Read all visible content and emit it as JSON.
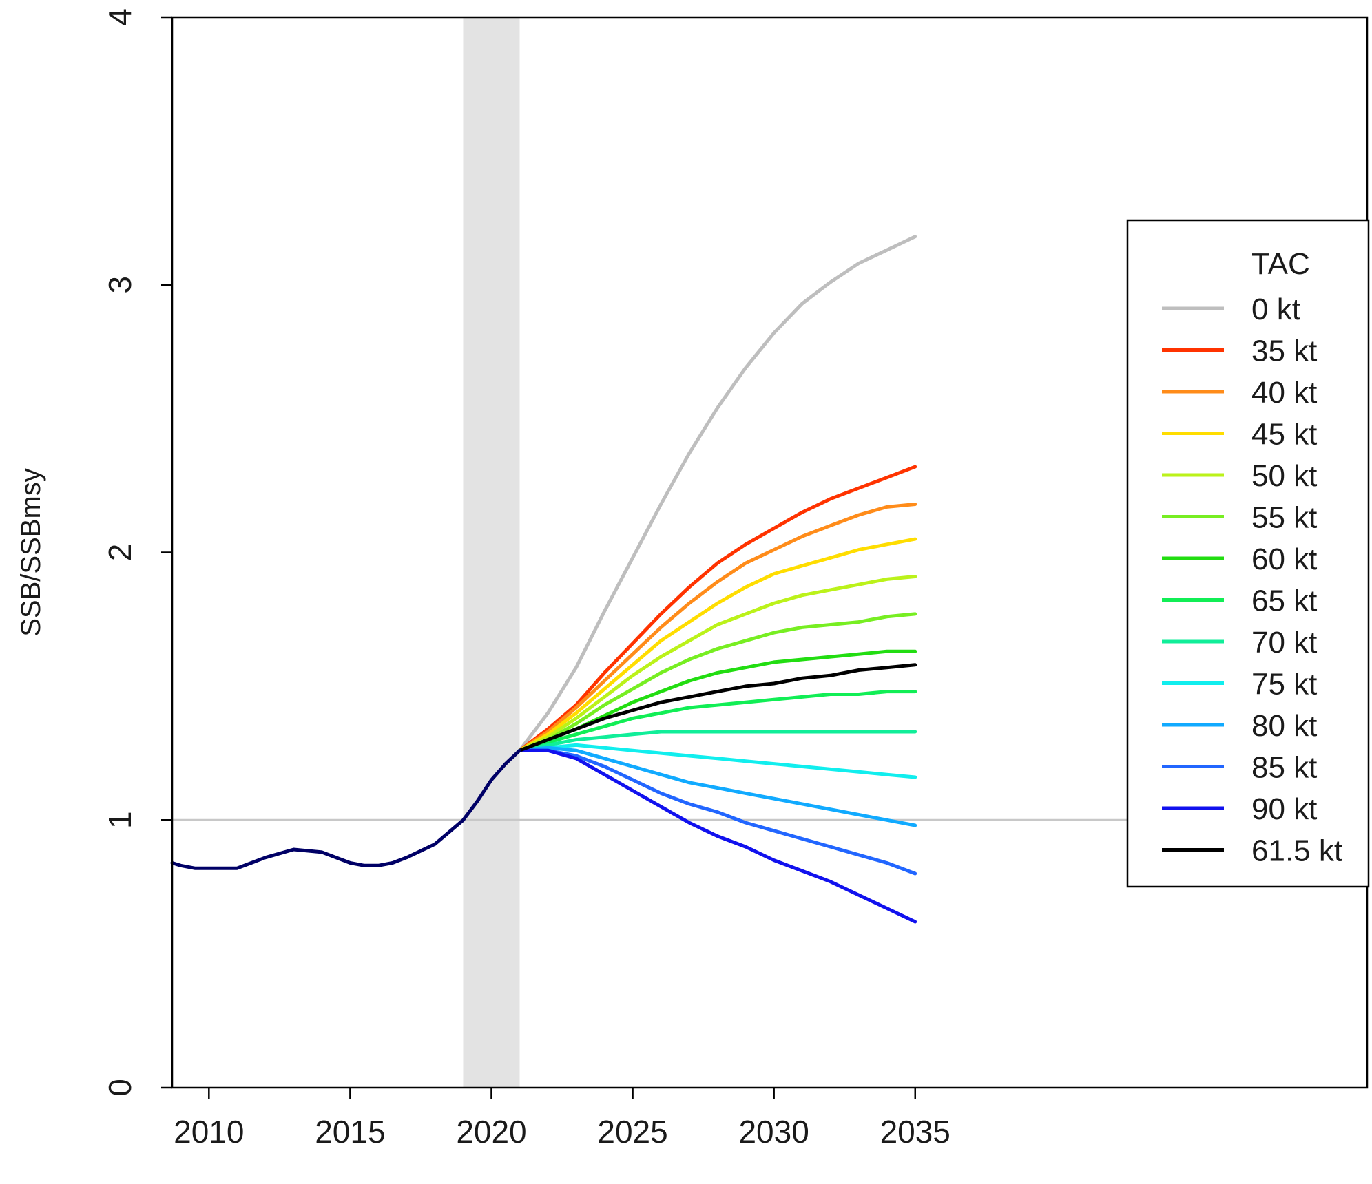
{
  "chart_data": {
    "type": "line",
    "title": "",
    "xlabel": "",
    "ylabel": "SSB/SSBmsy",
    "xlim": [
      2008.7,
      2051
    ],
    "ylim": [
      0,
      4
    ],
    "x_ticks": [
      "2010",
      "2015",
      "2020",
      "2025",
      "2030",
      "2035"
    ],
    "y_ticks": [
      "0",
      "1",
      "2",
      "3",
      "4"
    ],
    "grid": false,
    "shaded_region": {
      "x": [
        2019,
        2021
      ],
      "color": "#e3e3e3"
    },
    "reference_line": {
      "y": 1,
      "color": "#c8c8c8"
    },
    "historical": {
      "x": [
        2008.7,
        2009,
        2009.5,
        2010,
        2011,
        2011.5,
        2012,
        2013,
        2014,
        2015,
        2015.5,
        2016,
        2016.5,
        2017,
        2018,
        2019,
        2019.5,
        2020,
        2020.5,
        2021
      ],
      "y": [
        0.84,
        0.83,
        0.82,
        0.82,
        0.82,
        0.84,
        0.86,
        0.89,
        0.88,
        0.84,
        0.83,
        0.83,
        0.84,
        0.86,
        0.91,
        1.0,
        1.07,
        1.15,
        1.21,
        1.26
      ],
      "color": "#000066"
    },
    "projection_x": [
      2021,
      2022,
      2023,
      2024,
      2025,
      2026,
      2027,
      2028,
      2029,
      2030,
      2031,
      2032,
      2033,
      2034,
      2035
    ],
    "legend": {
      "title": "TAC",
      "position": "right"
    },
    "series": [
      {
        "name": "0 kt",
        "color": "#bebebe",
        "values": [
          1.26,
          1.4,
          1.57,
          1.78,
          1.98,
          2.18,
          2.37,
          2.54,
          2.69,
          2.82,
          2.93,
          3.01,
          3.08,
          3.13,
          3.18
        ]
      },
      {
        "name": "35 kt",
        "color": "#ff3300",
        "values": [
          1.26,
          1.34,
          1.43,
          1.55,
          1.66,
          1.77,
          1.87,
          1.96,
          2.03,
          2.09,
          2.15,
          2.2,
          2.24,
          2.28,
          2.32
        ]
      },
      {
        "name": "40 kt",
        "color": "#ff8c1a",
        "values": [
          1.26,
          1.33,
          1.42,
          1.52,
          1.62,
          1.72,
          1.81,
          1.89,
          1.96,
          2.01,
          2.06,
          2.1,
          2.14,
          2.17,
          2.18
        ]
      },
      {
        "name": "45 kt",
        "color": "#ffdd00",
        "values": [
          1.26,
          1.32,
          1.4,
          1.49,
          1.58,
          1.67,
          1.74,
          1.81,
          1.87,
          1.92,
          1.95,
          1.98,
          2.01,
          2.03,
          2.05
        ]
      },
      {
        "name": "50 kt",
        "color": "#bbf21a",
        "values": [
          1.26,
          1.31,
          1.38,
          1.46,
          1.54,
          1.61,
          1.67,
          1.73,
          1.77,
          1.81,
          1.84,
          1.86,
          1.88,
          1.9,
          1.91
        ]
      },
      {
        "name": "55 kt",
        "color": "#77ee22",
        "values": [
          1.26,
          1.3,
          1.36,
          1.43,
          1.49,
          1.55,
          1.6,
          1.64,
          1.67,
          1.7,
          1.72,
          1.73,
          1.74,
          1.76,
          1.77
        ]
      },
      {
        "name": "60 kt",
        "color": "#22dd11",
        "values": [
          1.26,
          1.3,
          1.34,
          1.39,
          1.44,
          1.48,
          1.52,
          1.55,
          1.57,
          1.59,
          1.6,
          1.61,
          1.62,
          1.63,
          1.63
        ]
      },
      {
        "name": "65 kt",
        "color": "#11ee55",
        "values": [
          1.26,
          1.29,
          1.32,
          1.35,
          1.38,
          1.4,
          1.42,
          1.43,
          1.44,
          1.45,
          1.46,
          1.47,
          1.47,
          1.48,
          1.48
        ]
      },
      {
        "name": "70 kt",
        "color": "#11ee99",
        "values": [
          1.26,
          1.28,
          1.3,
          1.31,
          1.32,
          1.33,
          1.33,
          1.33,
          1.33,
          1.33,
          1.33,
          1.33,
          1.33,
          1.33,
          1.33
        ]
      },
      {
        "name": "75 kt",
        "color": "#11eeee",
        "values": [
          1.26,
          1.27,
          1.28,
          1.27,
          1.26,
          1.25,
          1.24,
          1.23,
          1.22,
          1.21,
          1.2,
          1.19,
          1.18,
          1.17,
          1.16
        ]
      },
      {
        "name": "80 kt",
        "color": "#11aaff",
        "values": [
          1.26,
          1.27,
          1.26,
          1.23,
          1.2,
          1.17,
          1.14,
          1.12,
          1.1,
          1.08,
          1.06,
          1.04,
          1.02,
          1.0,
          0.98
        ]
      },
      {
        "name": "85 kt",
        "color": "#2266ff",
        "values": [
          1.26,
          1.26,
          1.24,
          1.2,
          1.15,
          1.1,
          1.06,
          1.03,
          0.99,
          0.96,
          0.93,
          0.9,
          0.87,
          0.84,
          0.8
        ]
      },
      {
        "name": "90 kt",
        "color": "#1111ee",
        "values": [
          1.26,
          1.26,
          1.23,
          1.17,
          1.11,
          1.05,
          0.99,
          0.94,
          0.9,
          0.85,
          0.81,
          0.77,
          0.72,
          0.67,
          0.62
        ]
      },
      {
        "name": "61.5 kt",
        "color": "#000000",
        "values": [
          1.26,
          1.3,
          1.34,
          1.38,
          1.41,
          1.44,
          1.46,
          1.48,
          1.5,
          1.51,
          1.53,
          1.54,
          1.56,
          1.57,
          1.58
        ]
      }
    ]
  }
}
